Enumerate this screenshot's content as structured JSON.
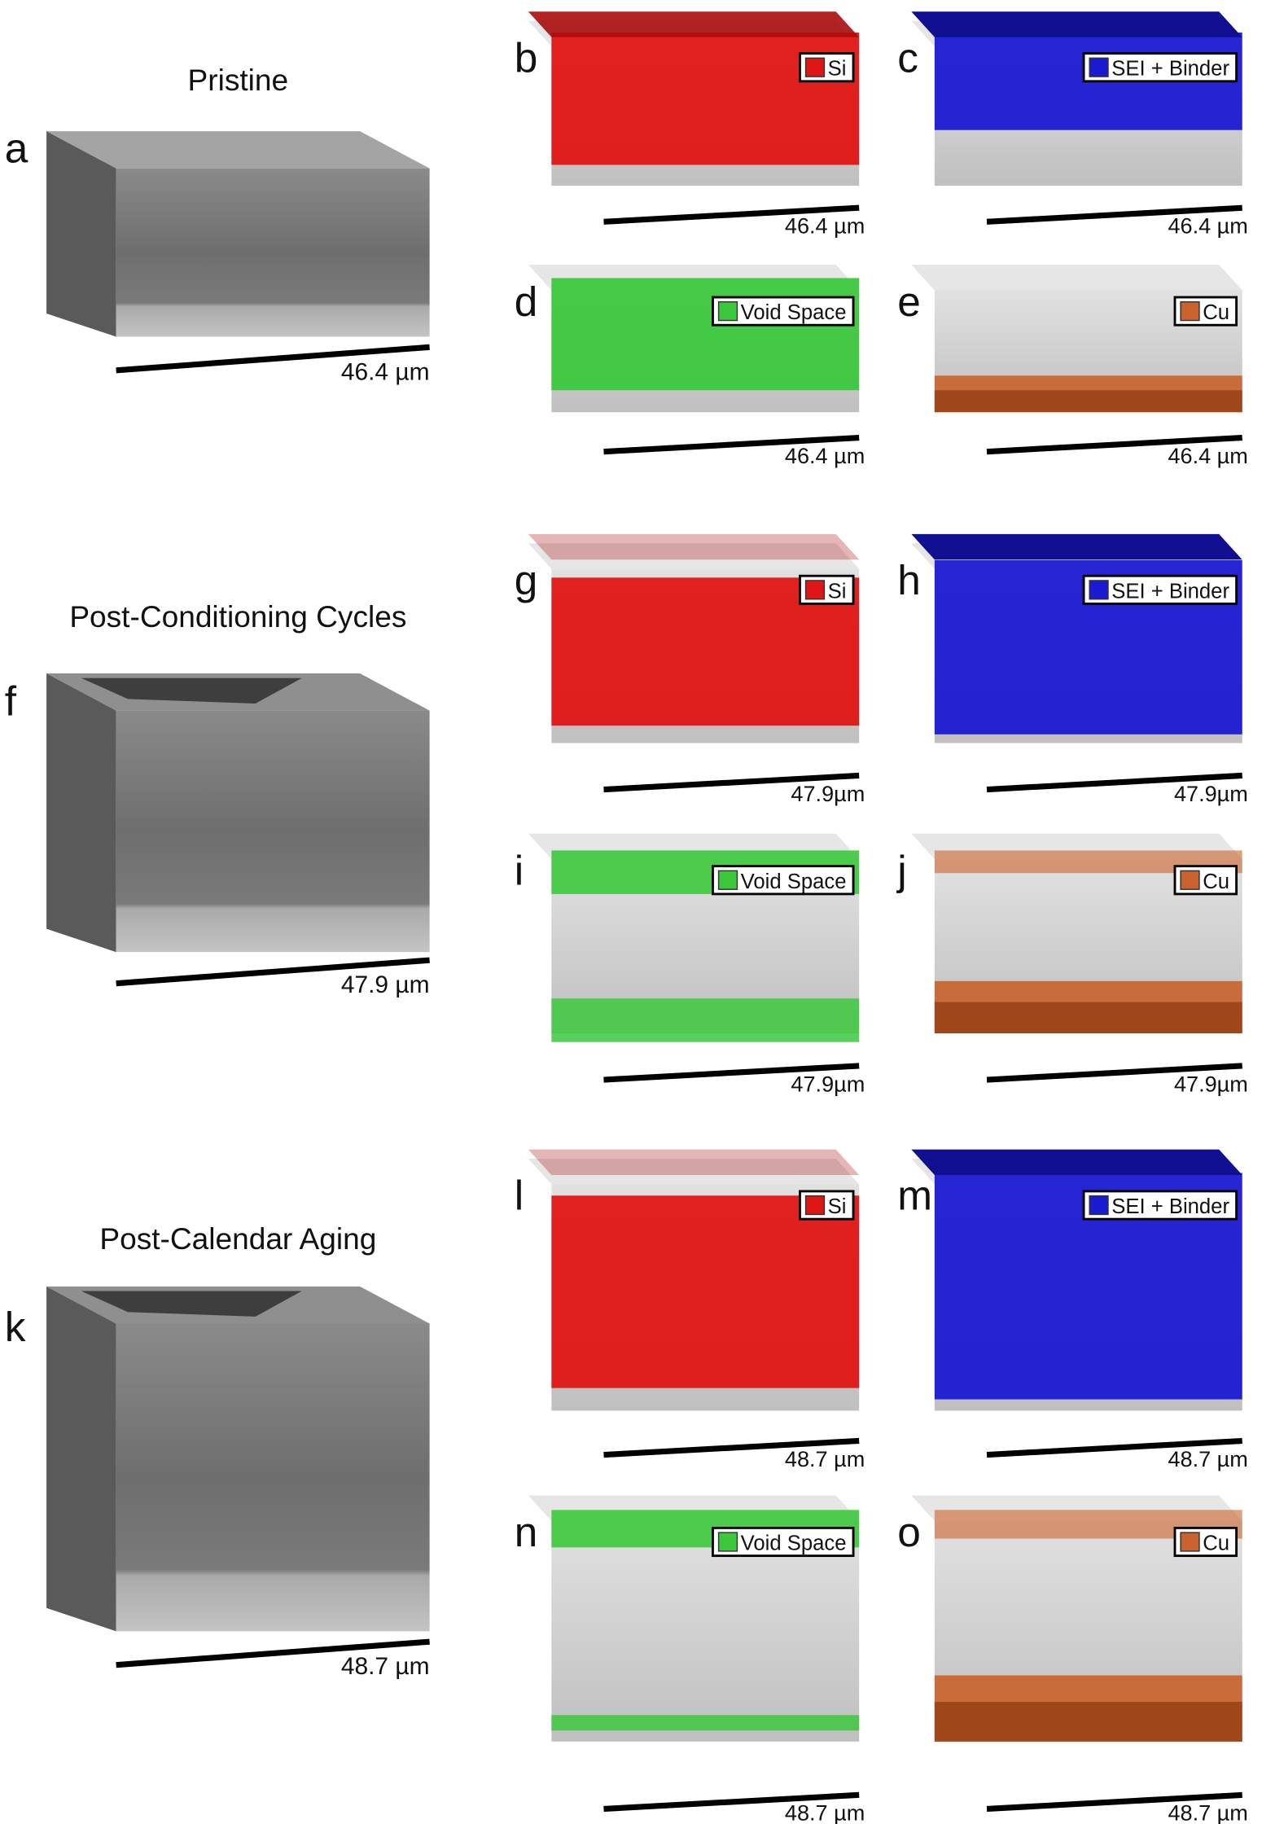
{
  "rows": [
    {
      "title": "Pristine",
      "label": "a",
      "scale": "46.4 µm",
      "panels": [
        {
          "label": "b",
          "legend": "Si",
          "scale": "46.4 µm"
        },
        {
          "label": "c",
          "legend": "SEI + Binder",
          "scale": "46.4 µm"
        },
        {
          "label": "d",
          "legend": "Void Space",
          "scale": "46.4 µm"
        },
        {
          "label": "e",
          "legend": "Cu",
          "scale": "46.4 µm"
        }
      ]
    },
    {
      "title": "Post-Conditioning Cycles",
      "label": "f",
      "scale": "47.9 µm",
      "panels": [
        {
          "label": "g",
          "legend": "Si",
          "scale": "47.9µm"
        },
        {
          "label": "h",
          "legend": "SEI + Binder",
          "scale": "47.9µm"
        },
        {
          "label": "i",
          "legend": "Void Space",
          "scale": "47.9µm"
        },
        {
          "label": "j",
          "legend": "Cu",
          "scale": "47.9µm"
        }
      ]
    },
    {
      "title": "Post-Calendar Aging",
      "label": "k",
      "scale": "48.7 µm",
      "panels": [
        {
          "label": "l",
          "legend": "Si",
          "scale": "48.7 µm"
        },
        {
          "label": "m",
          "legend": "SEI + Binder",
          "scale": "48.7 µm"
        },
        {
          "label": "n",
          "legend": "Void Space",
          "scale": "48.7 µm"
        },
        {
          "label": "o",
          "legend": "Cu",
          "scale": "48.7 µm"
        }
      ]
    }
  ]
}
